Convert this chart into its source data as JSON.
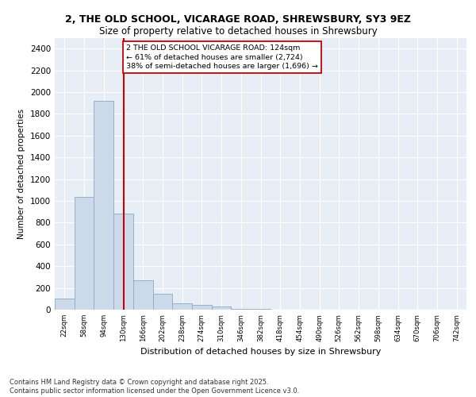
{
  "title": "2, THE OLD SCHOOL, VICARAGE ROAD, SHREWSBURY, SY3 9EZ",
  "subtitle": "Size of property relative to detached houses in Shrewsbury",
  "xlabel": "Distribution of detached houses by size in Shrewsbury",
  "ylabel": "Number of detached properties",
  "categories": [
    "22sqm",
    "58sqm",
    "94sqm",
    "130sqm",
    "166sqm",
    "202sqm",
    "238sqm",
    "274sqm",
    "310sqm",
    "346sqm",
    "382sqm",
    "418sqm",
    "454sqm",
    "490sqm",
    "526sqm",
    "562sqm",
    "598sqm",
    "634sqm",
    "670sqm",
    "706sqm",
    "742sqm"
  ],
  "bar_heights": [
    100,
    1040,
    1920,
    880,
    270,
    145,
    60,
    45,
    30,
    10,
    5,
    0,
    0,
    0,
    0,
    0,
    0,
    0,
    0,
    0,
    0
  ],
  "bar_color": "#ccd9e8",
  "bar_edge_color": "#8aaac8",
  "vline_x_index": 3,
  "vline_color": "#cc0000",
  "annotation_text": "2 THE OLD SCHOOL VICARAGE ROAD: 124sqm\n← 61% of detached houses are smaller (2,724)\n38% of semi-detached houses are larger (1,696) →",
  "annotation_box_color": "#cc0000",
  "ylim": [
    0,
    2500
  ],
  "yticks": [
    0,
    200,
    400,
    600,
    800,
    1000,
    1200,
    1400,
    1600,
    1800,
    2000,
    2200,
    2400
  ],
  "background_color": "#e8eef5",
  "grid_color": "#ffffff",
  "title_fontsize": 9,
  "subtitle_fontsize": 8.5,
  "footer": "Contains HM Land Registry data © Crown copyright and database right 2025.\nContains public sector information licensed under the Open Government Licence v3.0."
}
